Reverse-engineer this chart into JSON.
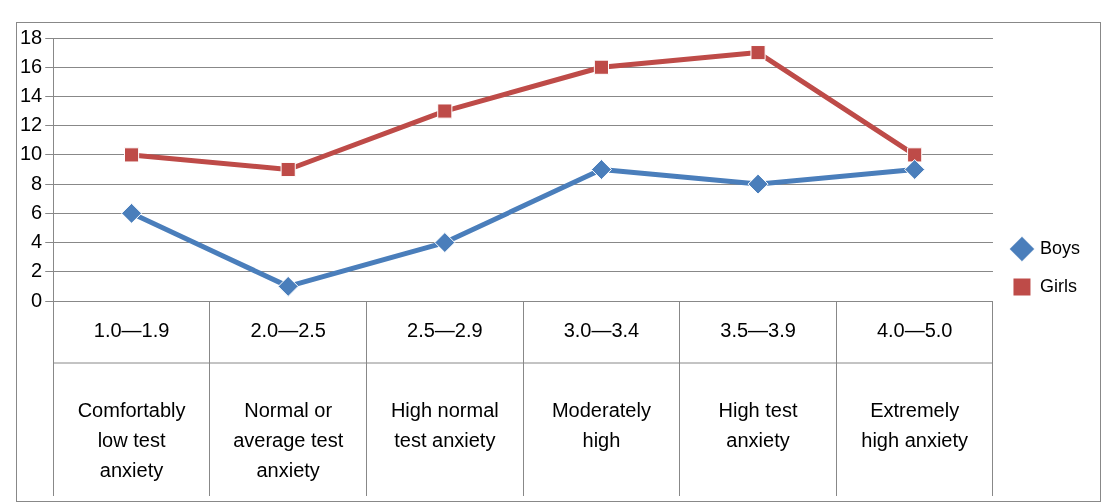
{
  "chart_data": {
    "type": "line",
    "categories": [
      "1.0—1.9\nComfortably low test anxiety",
      "2.0—2.5\nNormal or average test anxiety",
      "2.5—2.9\nHigh normal test anxiety",
      "3.0—3.4\nModerately high",
      "3.5—3.9\nHigh test anxiety",
      "4.0—5.0\nExtremely high anxiety"
    ],
    "series": [
      {
        "name": "Boys",
        "color": "#4a7ebb",
        "marker": "diamond",
        "values": [
          6,
          1,
          4,
          9,
          8,
          9
        ]
      },
      {
        "name": "Girls",
        "color": "#be4b48",
        "marker": "square",
        "values": [
          10,
          9,
          13,
          16,
          17,
          10
        ]
      }
    ],
    "ylim": [
      0,
      18
    ],
    "yticks": [
      0,
      2,
      4,
      6,
      8,
      10,
      12,
      14,
      16,
      18
    ],
    "grid": "y",
    "legend": "right"
  }
}
